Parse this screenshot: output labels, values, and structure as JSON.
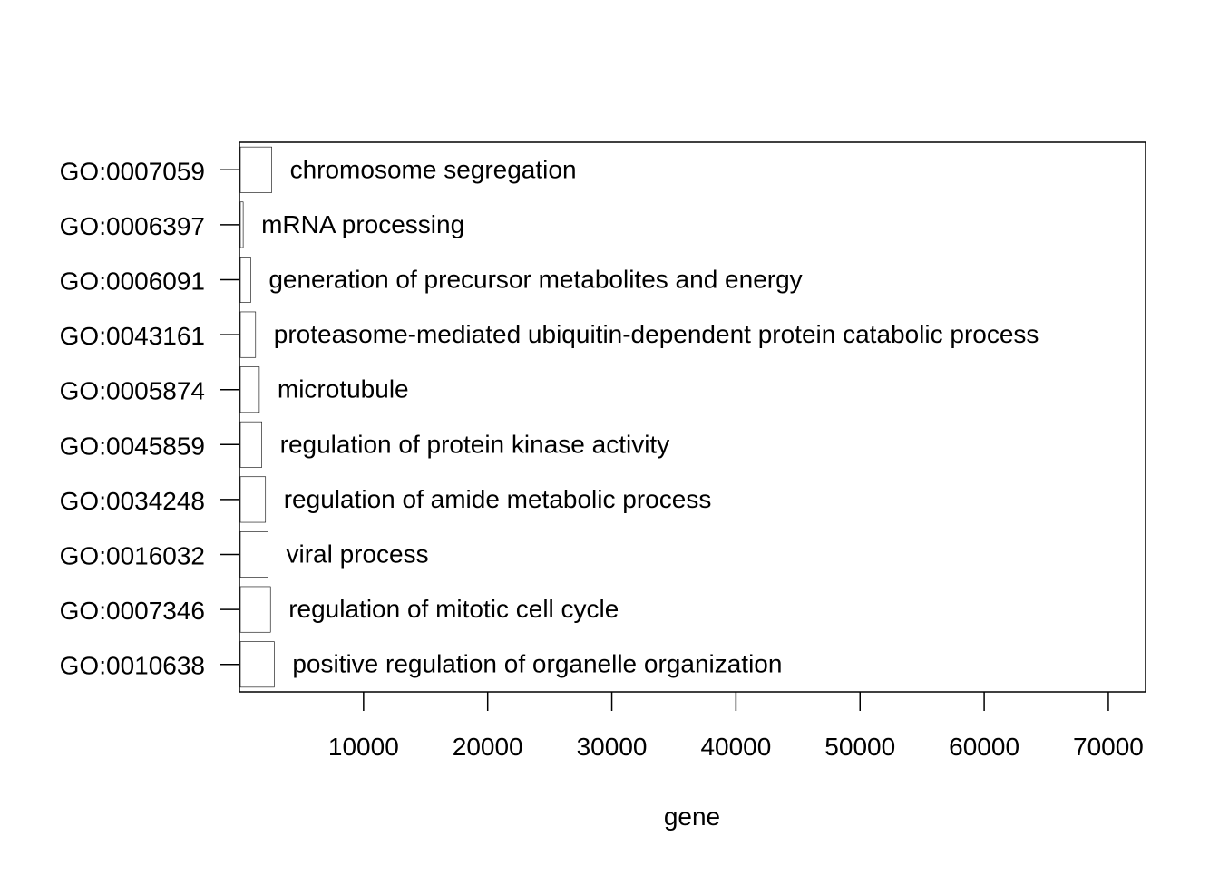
{
  "chart_data": {
    "type": "bar",
    "orientation": "horizontal",
    "xlabel": "gene",
    "ylabel": "",
    "title": "",
    "xlim": [
      0,
      73000
    ],
    "x_ticks": [
      10000,
      20000,
      30000,
      40000,
      50000,
      60000,
      70000
    ],
    "x_tick_labels": [
      "10000",
      "20000",
      "30000",
      "40000",
      "50000",
      "60000",
      "70000"
    ],
    "grid": false,
    "legend": "none",
    "bar_color": "#000000",
    "categories": [
      "GO:0007059",
      "GO:0006397",
      "GO:0006091",
      "GO:0043161",
      "GO:0005874",
      "GO:0045859",
      "GO:0034248",
      "GO:0016032",
      "GO:0007346",
      "GO:0010638"
    ],
    "descriptions": [
      "chromosome segregation",
      "mRNA processing",
      "generation of precursor metabolites and energy",
      "proteasome-mediated ubiquitin-dependent protein catabolic process",
      "microtubule",
      "regulation of protein kinase activity",
      "regulation of amide metabolic process",
      "viral process",
      "regulation of mitotic cell cycle",
      "positive regulation of organelle organization"
    ],
    "values": [
      2600,
      300,
      900,
      1300,
      1600,
      1800,
      2100,
      2300,
      2500,
      2800
    ]
  }
}
